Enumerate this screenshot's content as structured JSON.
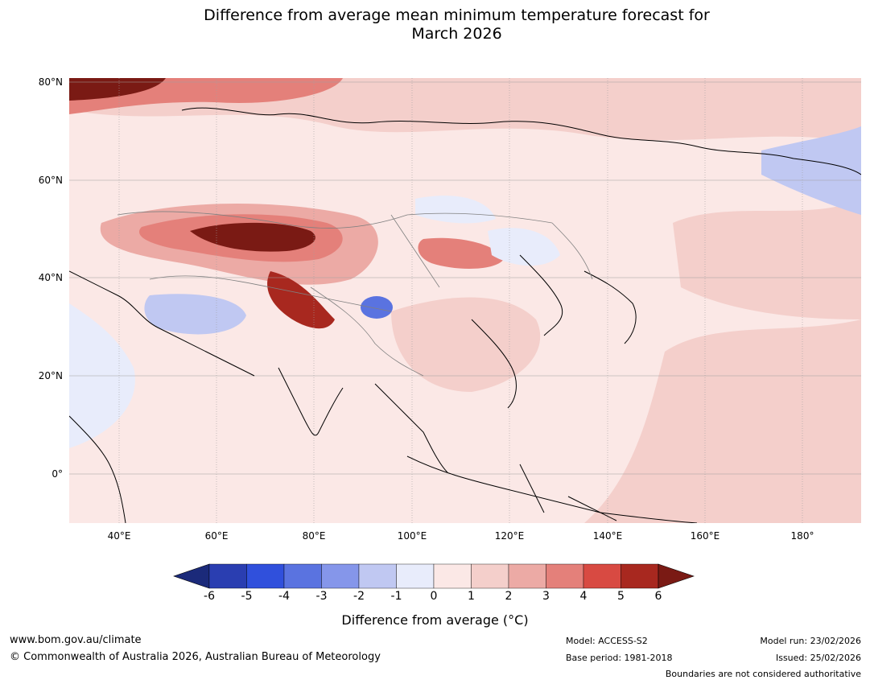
{
  "title": {
    "line1": "Difference from average mean minimum temperature forecast for",
    "line2": "March 2026"
  },
  "map": {
    "region": "Asia",
    "lat_labels": [
      "80°N",
      "60°N",
      "40°N",
      "20°N",
      "0°"
    ],
    "lon_labels": [
      "40°E",
      "60°E",
      "80°E",
      "100°E",
      "120°E",
      "140°E",
      "160°E",
      "180°"
    ]
  },
  "colorbar": {
    "ticks": [
      "-6",
      "-5",
      "-4",
      "-3",
      "-2",
      "-1",
      "0",
      "1",
      "2",
      "3",
      "4",
      "5",
      "6"
    ],
    "colors": [
      "#1b2a7a",
      "#2a3eb1",
      "#3050dc",
      "#5a73e0",
      "#8596ea",
      "#c0c8f2",
      "#e8ecfb",
      "#fbe8e6",
      "#f4cfcb",
      "#ecaaa5",
      "#e4807a",
      "#d84a42",
      "#a8281f",
      "#7a1a14"
    ],
    "label": "Difference from average (°C)",
    "label_prefix": "Difference from average (",
    "label_unit": "°C",
    "label_suffix": ")"
  },
  "footer": {
    "website": "www.bom.gov.au/climate",
    "copyright": "© Commonwealth of Australia 2026, Australian Bureau of Meteorology",
    "model": "Model: ACCESS-S2",
    "base_period": "Base period: 1981-2018",
    "model_run": "Model run: 23/02/2026",
    "issued": "Issued: 25/02/2026",
    "boundaries_note": "Boundaries are not considered authoritative"
  }
}
